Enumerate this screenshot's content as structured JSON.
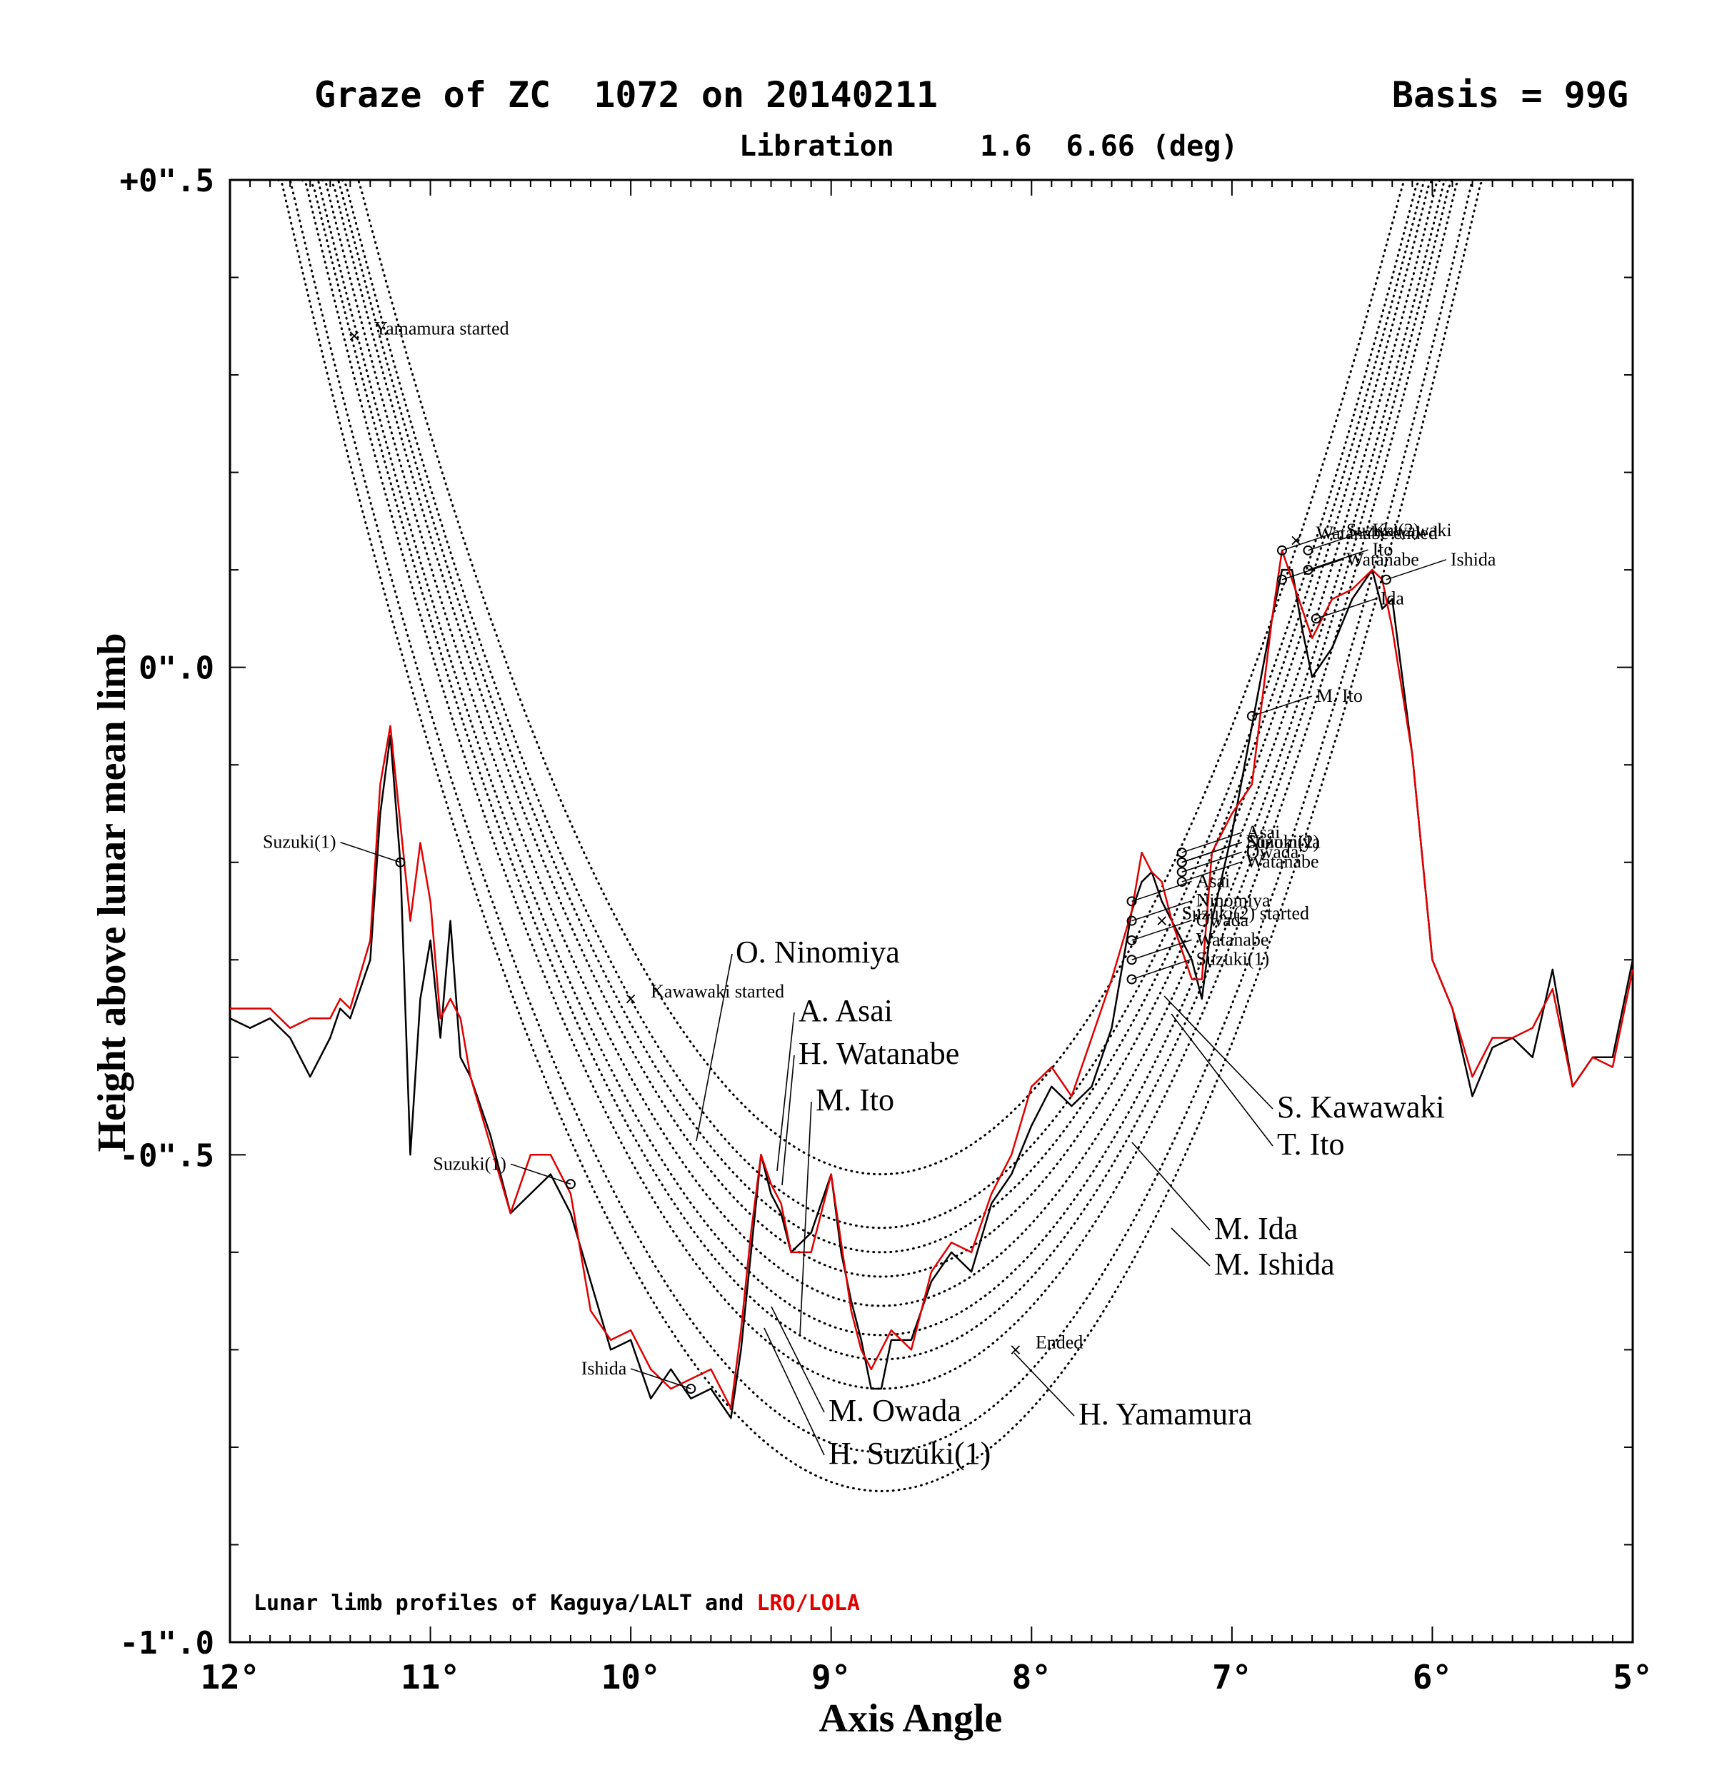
{
  "chart_data": {
    "type": "line",
    "title": "Graze of ZC  1072 on 20140211",
    "basis": "Basis = 99G",
    "subtitle": "Libration     1.6  6.66 (deg)",
    "xlabel": "Axis Angle",
    "ylabel": "Height above lunar mean limb",
    "xlim": [
      12,
      5
    ],
    "ylim": [
      -1.0,
      0.5
    ],
    "x_ticks": [
      "12°",
      "11°",
      "10°",
      "9°",
      "8°",
      "7°",
      "6°",
      "5°"
    ],
    "y_ticks": [
      "+0\".5",
      "0\".0",
      "-0\".5",
      "-1\".0"
    ],
    "note_prefix": "Lunar limb profiles of Kaguya/LALT and ",
    "note_highlight": "LRO/LOLA",
    "colors": {
      "kaguya": "#000000",
      "lola": "#e00000",
      "chords": "#000000"
    },
    "series": [
      {
        "name": "Kaguya/LALT",
        "x": [
          12.0,
          11.9,
          11.8,
          11.7,
          11.6,
          11.5,
          11.45,
          11.4,
          11.3,
          11.25,
          11.2,
          11.15,
          11.1,
          11.05,
          11.0,
          10.95,
          10.9,
          10.85,
          10.8,
          10.7,
          10.6,
          10.5,
          10.4,
          10.3,
          10.2,
          10.1,
          10.0,
          9.9,
          9.8,
          9.7,
          9.6,
          9.5,
          9.45,
          9.4,
          9.35,
          9.3,
          9.25,
          9.2,
          9.1,
          9.0,
          8.95,
          8.9,
          8.85,
          8.8,
          8.75,
          8.7,
          8.6,
          8.5,
          8.4,
          8.3,
          8.2,
          8.1,
          8.0,
          7.9,
          7.8,
          7.7,
          7.6,
          7.5,
          7.45,
          7.4,
          7.35,
          7.3,
          7.2,
          7.15,
          7.1,
          7.0,
          6.9,
          6.8,
          6.75,
          6.7,
          6.65,
          6.6,
          6.5,
          6.4,
          6.3,
          6.25,
          6.2,
          6.1,
          6.0,
          5.9,
          5.8,
          5.7,
          5.6,
          5.5,
          5.4,
          5.3,
          5.2,
          5.1,
          5.0
        ],
        "y": [
          -0.36,
          -0.37,
          -0.36,
          -0.38,
          -0.42,
          -0.38,
          -0.35,
          -0.36,
          -0.3,
          -0.15,
          -0.07,
          -0.2,
          -0.5,
          -0.34,
          -0.28,
          -0.38,
          -0.26,
          -0.4,
          -0.42,
          -0.48,
          -0.56,
          -0.54,
          -0.52,
          -0.56,
          -0.63,
          -0.7,
          -0.69,
          -0.75,
          -0.72,
          -0.75,
          -0.74,
          -0.77,
          -0.7,
          -0.6,
          -0.5,
          -0.54,
          -0.56,
          -0.6,
          -0.58,
          -0.52,
          -0.6,
          -0.65,
          -0.69,
          -0.74,
          -0.74,
          -0.69,
          -0.69,
          -0.63,
          -0.6,
          -0.62,
          -0.55,
          -0.52,
          -0.47,
          -0.43,
          -0.45,
          -0.43,
          -0.37,
          -0.25,
          -0.22,
          -0.21,
          -0.24,
          -0.26,
          -0.3,
          -0.34,
          -0.26,
          -0.17,
          -0.06,
          0.05,
          0.1,
          0.1,
          0.04,
          -0.01,
          0.02,
          0.07,
          0.1,
          0.06,
          0.07,
          -0.09,
          -0.3,
          -0.35,
          -0.44,
          -0.39,
          -0.38,
          -0.4,
          -0.31,
          -0.43,
          -0.4,
          -0.4,
          -0.3
        ]
      },
      {
        "name": "LRO/LOLA",
        "x": [
          12.0,
          11.9,
          11.8,
          11.7,
          11.6,
          11.5,
          11.45,
          11.4,
          11.3,
          11.25,
          11.2,
          11.15,
          11.1,
          11.05,
          11.0,
          10.95,
          10.9,
          10.85,
          10.8,
          10.7,
          10.6,
          10.5,
          10.4,
          10.3,
          10.2,
          10.1,
          10.0,
          9.9,
          9.8,
          9.7,
          9.6,
          9.5,
          9.45,
          9.4,
          9.35,
          9.3,
          9.25,
          9.2,
          9.1,
          9.0,
          8.95,
          8.9,
          8.85,
          8.8,
          8.75,
          8.7,
          8.6,
          8.5,
          8.4,
          8.3,
          8.2,
          8.1,
          8.0,
          7.9,
          7.8,
          7.7,
          7.6,
          7.5,
          7.45,
          7.4,
          7.35,
          7.3,
          7.2,
          7.15,
          7.1,
          7.0,
          6.9,
          6.8,
          6.75,
          6.7,
          6.65,
          6.6,
          6.5,
          6.4,
          6.3,
          6.25,
          6.2,
          6.1,
          6.0,
          5.9,
          5.8,
          5.7,
          5.6,
          5.5,
          5.4,
          5.3,
          5.2,
          5.1,
          5.0
        ],
        "y": [
          -0.35,
          -0.35,
          -0.35,
          -0.37,
          -0.36,
          -0.36,
          -0.34,
          -0.35,
          -0.28,
          -0.12,
          -0.06,
          -0.16,
          -0.26,
          -0.18,
          -0.24,
          -0.36,
          -0.34,
          -0.36,
          -0.42,
          -0.49,
          -0.56,
          -0.5,
          -0.5,
          -0.54,
          -0.66,
          -0.69,
          -0.68,
          -0.72,
          -0.74,
          -0.73,
          -0.72,
          -0.76,
          -0.68,
          -0.58,
          -0.5,
          -0.53,
          -0.55,
          -0.6,
          -0.6,
          -0.52,
          -0.59,
          -0.66,
          -0.7,
          -0.72,
          -0.7,
          -0.68,
          -0.7,
          -0.62,
          -0.59,
          -0.6,
          -0.54,
          -0.5,
          -0.43,
          -0.41,
          -0.44,
          -0.38,
          -0.32,
          -0.25,
          -0.19,
          -0.21,
          -0.22,
          -0.26,
          -0.32,
          -0.32,
          -0.19,
          -0.15,
          -0.12,
          0.05,
          0.12,
          0.09,
          0.06,
          0.03,
          0.07,
          0.08,
          0.1,
          0.09,
          0.04,
          -0.09,
          -0.3,
          -0.35,
          -0.42,
          -0.38,
          -0.38,
          -0.37,
          -0.33,
          -0.43,
          -0.4,
          -0.41,
          -0.31
        ]
      }
    ],
    "chord_curves": [
      {
        "vertex_x": 8.75,
        "vertex_y": -0.52,
        "curvature": 0.15
      },
      {
        "vertex_x": 8.75,
        "vertex_y": -0.575,
        "curvature": 0.15
      },
      {
        "vertex_x": 8.75,
        "vertex_y": -0.6,
        "curvature": 0.15
      },
      {
        "vertex_x": 8.75,
        "vertex_y": -0.625,
        "curvature": 0.15
      },
      {
        "vertex_x": 8.75,
        "vertex_y": -0.655,
        "curvature": 0.15
      },
      {
        "vertex_x": 8.75,
        "vertex_y": -0.685,
        "curvature": 0.15
      },
      {
        "vertex_x": 8.75,
        "vertex_y": -0.71,
        "curvature": 0.15
      },
      {
        "vertex_x": 8.75,
        "vertex_y": -0.74,
        "curvature": 0.15
      },
      {
        "vertex_x": 8.75,
        "vertex_y": -0.805,
        "curvature": 0.15
      },
      {
        "vertex_x": 8.75,
        "vertex_y": -0.845,
        "curvature": 0.15
      }
    ],
    "observers": [
      "O. Ninomiya",
      "A. Asai",
      "H. Watanabe",
      "M. Ito",
      "S. Kawawaki",
      "T. Ito",
      "M. Ida",
      "M. Ishida",
      "M. Owada",
      "H. Suzuki(1)",
      "H. Yamamura"
    ],
    "annotations": [
      {
        "text": "Yamamura started",
        "x": 11.38,
        "y": 0.34
      },
      {
        "text": "Kawawaki started",
        "x": 10.0,
        "y": -0.34
      },
      {
        "text": "Watanabe ended",
        "x": 6.68,
        "y": 0.13
      },
      {
        "text": "Suzuki(2) started",
        "x": 7.35,
        "y": -0.26
      },
      {
        "text": "Ended",
        "x": 8.08,
        "y": -0.7
      },
      {
        "text": "Suzuki(1)",
        "x": 11.15,
        "y": -0.2
      },
      {
        "text": "Suzuki(1)",
        "x": 10.3,
        "y": -0.53
      },
      {
        "text": "Ishida",
        "x": 9.7,
        "y": -0.74
      },
      {
        "text": "Suzuki(2)",
        "x": 6.75,
        "y": 0.12
      },
      {
        "text": "Watanabe",
        "x": 6.75,
        "y": 0.09
      },
      {
        "text": "M. Ito",
        "x": 6.9,
        "y": -0.05
      },
      {
        "text": "Kawawaki",
        "x": 6.62,
        "y": 0.12
      },
      {
        "text": "Ito",
        "x": 6.62,
        "y": 0.1
      },
      {
        "text": "Ishida",
        "x": 6.23,
        "y": 0.09
      },
      {
        "text": "Ida",
        "x": 6.58,
        "y": 0.05
      },
      {
        "text": "Asai",
        "x": 7.25,
        "y": -0.19
      },
      {
        "text": "Ninomiya",
        "x": 7.25,
        "y": -0.2
      },
      {
        "text": "Owada",
        "x": 7.25,
        "y": -0.21
      },
      {
        "text": "Suzuki(1)",
        "x": 7.25,
        "y": -0.2
      },
      {
        "text": "Suzuki(2)",
        "x": 7.25,
        "y": -0.2
      },
      {
        "text": "Watanabe",
        "x": 7.25,
        "y": -0.22
      },
      {
        "text": "Asai",
        "x": 7.5,
        "y": -0.24
      },
      {
        "text": "Ninomiya",
        "x": 7.5,
        "y": -0.26
      },
      {
        "text": "Owada",
        "x": 7.5,
        "y": -0.28
      },
      {
        "text": "Watanabe",
        "x": 7.5,
        "y": -0.3
      },
      {
        "text": "Suzuki(1)",
        "x": 7.5,
        "y": -0.32
      }
    ]
  }
}
